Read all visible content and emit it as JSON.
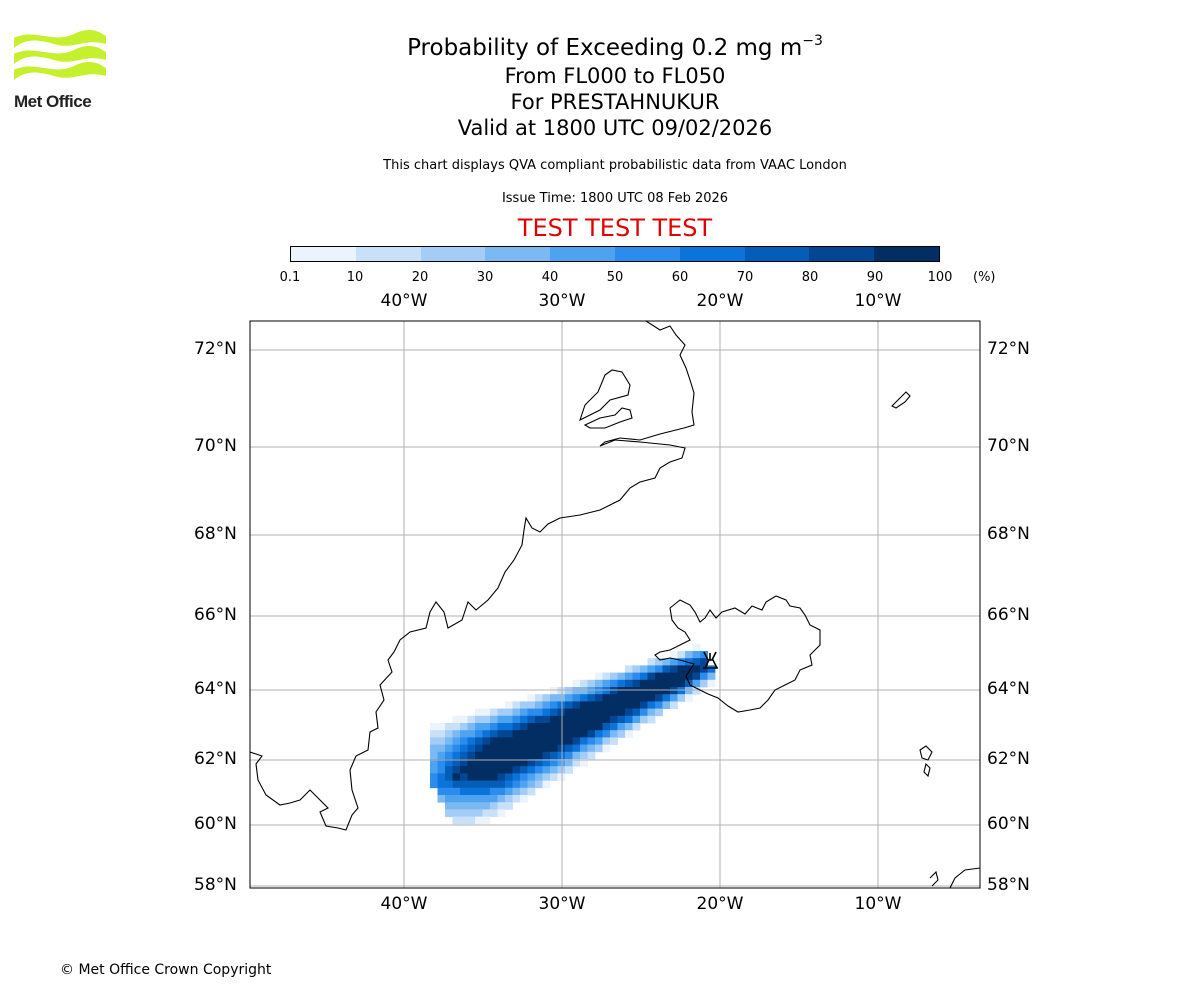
{
  "logo": {
    "text": "Met Office"
  },
  "titles": {
    "line1_main": "Probability of Exceeding 0.2 mg m",
    "line1_sup": "−3",
    "line2": "From FL000 to FL050",
    "line3": "For PRESTAHNUKUR",
    "line4": "Valid at 1800 UTC 09/02/2026"
  },
  "subtitle": "This chart displays QVA compliant probabilistic data from VAAC London",
  "issue_time": "Issue Time: 1800 UTC 08 Feb 2026",
  "test_banner": "TEST TEST TEST",
  "colorbar": {
    "ticks": [
      "0.1",
      "10",
      "20",
      "30",
      "40",
      "50",
      "60",
      "70",
      "80",
      "90",
      "100"
    ],
    "unit": "(%)",
    "colors": [
      "#ebf3fc",
      "#c8e0f8",
      "#a3cdf6",
      "#7bb9f3",
      "#4ea3f0",
      "#2b8ced",
      "#0b74db",
      "#045eb8",
      "#034693",
      "#022e63"
    ]
  },
  "map": {
    "lon_labels": [
      "40°W",
      "30°W",
      "20°W",
      "10°W"
    ],
    "lat_labels": [
      "72°N",
      "70°N",
      "68°N",
      "66°N",
      "64°N",
      "62°N",
      "60°N",
      "58°N"
    ],
    "volcano_marker": "volcano-symbol"
  },
  "copyright": "© Met Office Crown Copyright"
}
